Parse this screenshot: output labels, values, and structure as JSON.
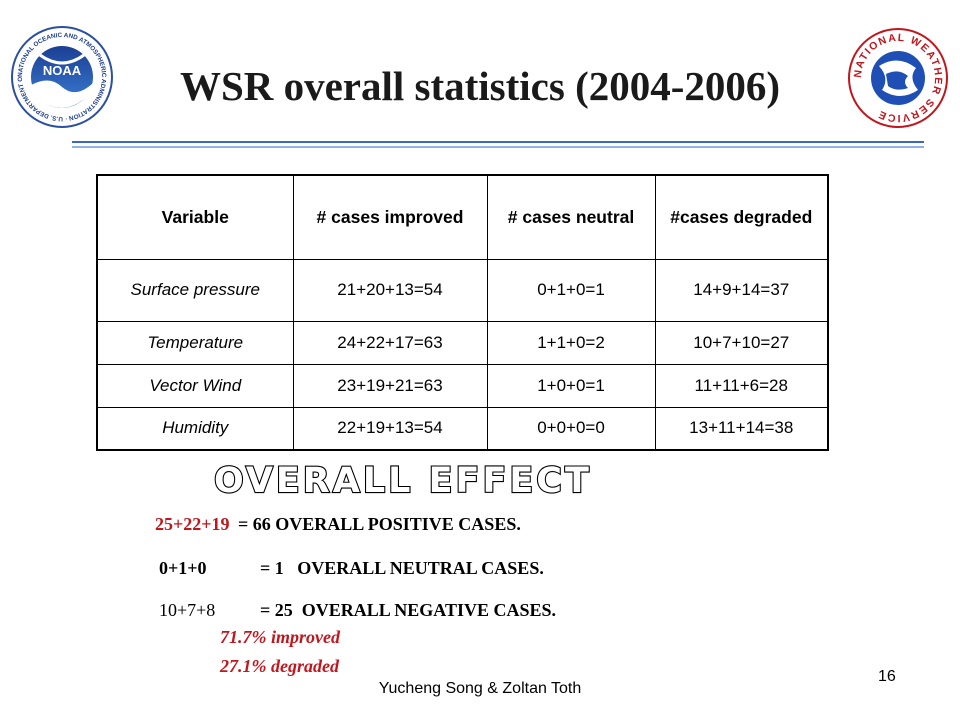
{
  "logos": {
    "noaa": {
      "text": "NOAA",
      "ring_text": "NATIONAL OCEANIC AND ATMOSPHERIC ADMINISTRATION · U.S. DEPARTMENT OF COMMERCE"
    },
    "nws": {
      "ring_text": "NATIONAL WEATHER SERVICE"
    }
  },
  "title": "WSR overall statistics (2004-2006)",
  "table": {
    "headers": [
      "Variable",
      "# cases improved",
      "# cases neutral",
      "#cases degraded"
    ],
    "rows": [
      {
        "variable": "Surface pressure",
        "improved": "21+20+13=54",
        "neutral": "0+1+0=1",
        "degraded": "14+9+14=37"
      },
      {
        "variable": "Temperature",
        "improved": "24+22+17=63",
        "neutral": "1+1+0=2",
        "degraded": "10+7+10=27"
      },
      {
        "variable": "Vector Wind",
        "improved": "23+19+21=63",
        "neutral": "1+0+0=1",
        "degraded": "11+11+6=28"
      },
      {
        "variable": "Humidity",
        "improved": "22+19+13=54",
        "neutral": "0+0+0=0",
        "degraded": "13+11+14=38"
      }
    ]
  },
  "overall_effect": "OVERALL EFFECT:",
  "summary": {
    "positive_sum": "25+22+19",
    "positive_rest": "= 66 OVERALL POSITIVE CASES.",
    "neutral_sum": "0+1+0",
    "neutral_rest": "= 1   OVERALL NEUTRAL CASES.",
    "negative_sum": "10+7+8",
    "negative_rest": "= 25  OVERALL NEGATIVE CASES.",
    "improved_pct": "71.7% improved",
    "degraded_pct": "27.1% degraded"
  },
  "footer": "Yucheng Song & Zoltan Toth",
  "page_number": "16",
  "colors": {
    "accent_red": "#c0161d",
    "rule_blue": "#3a66c4",
    "noaa_blue": "#1f5fb8"
  }
}
